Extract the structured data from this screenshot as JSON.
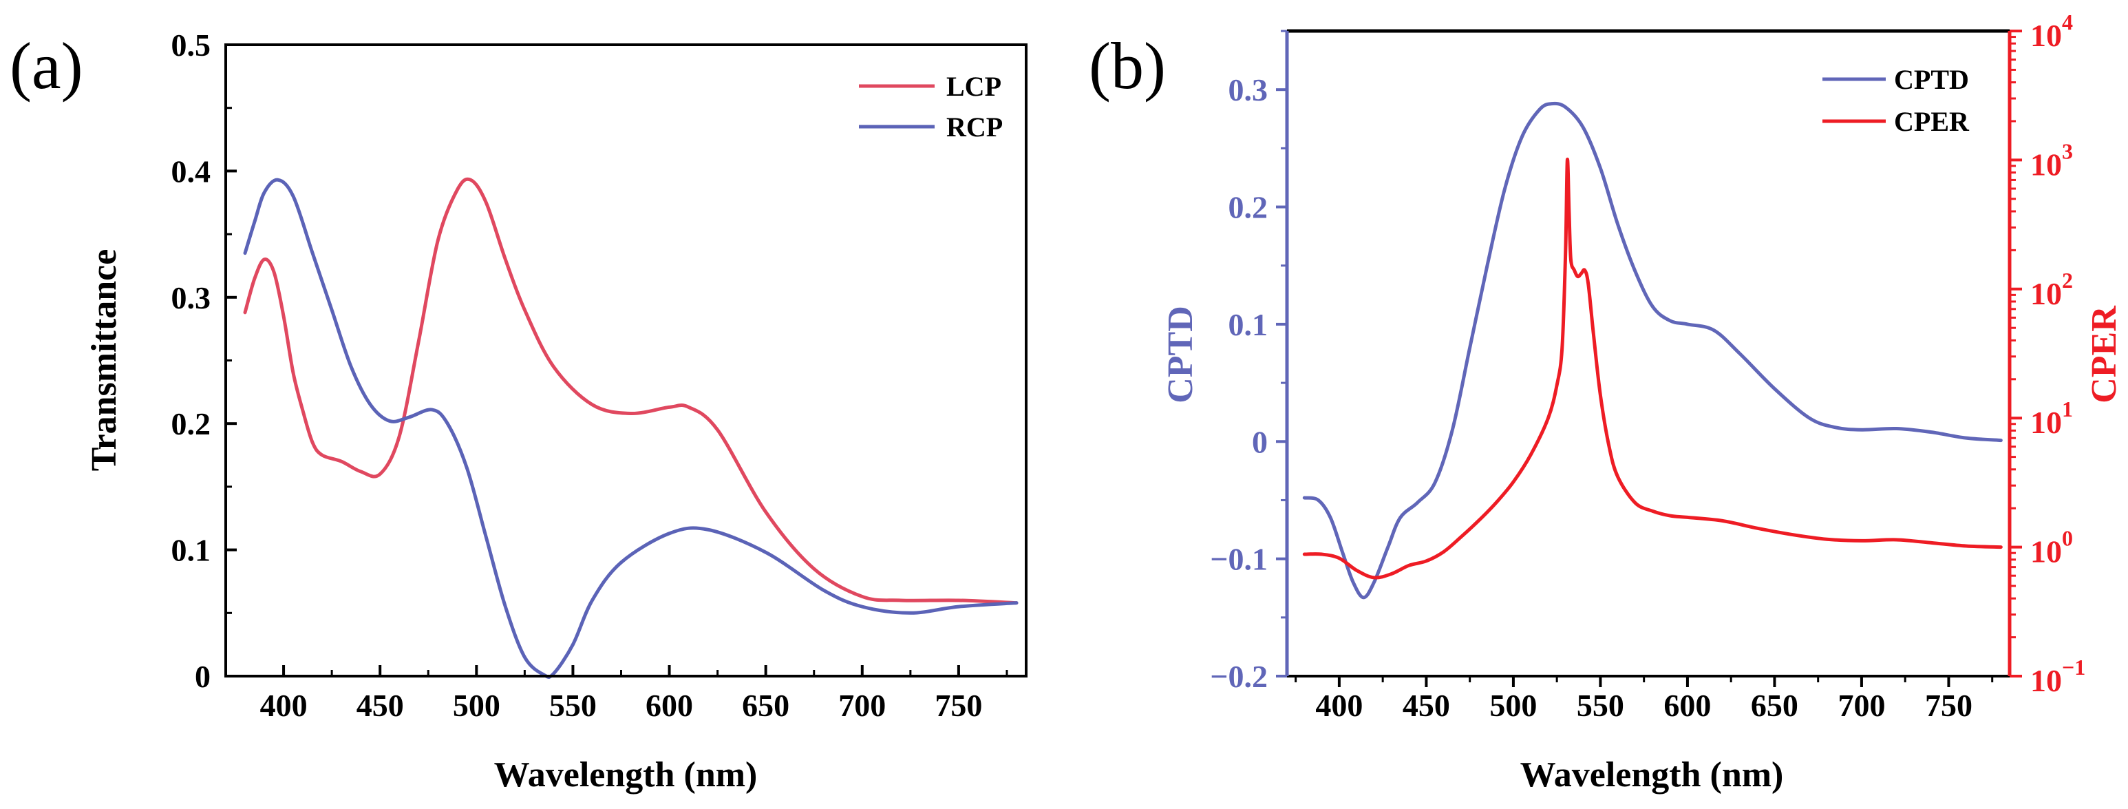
{
  "chart_data": [
    {
      "panel": "(a)",
      "type": "line",
      "title": "",
      "xlabel": "Wavelength (nm)",
      "ylabel": "Transmittance",
      "xlim": [
        370,
        785
      ],
      "ylim": [
        0,
        0.5
      ],
      "xticks": [
        400,
        450,
        500,
        550,
        600,
        650,
        700,
        750
      ],
      "xtick_labels": [
        "400",
        "450",
        "500",
        "550",
        "600",
        "650",
        "700",
        "750"
      ],
      "yticks": [
        0,
        0.1,
        0.2,
        0.3,
        0.4,
        0.5
      ],
      "ytick_labels": [
        "0",
        "0.1",
        "0.2",
        "0.3",
        "0.4",
        "0.5"
      ],
      "legend_position": "top-right",
      "series": [
        {
          "name": "LCP",
          "color": "#e0485f",
          "x": [
            380,
            385,
            390,
            395,
            400,
            405,
            410,
            415,
            420,
            430,
            440,
            450,
            460,
            470,
            480,
            490,
            497,
            505,
            515,
            525,
            540,
            560,
            580,
            600,
            610,
            625,
            650,
            675,
            700,
            720,
            750,
            780
          ],
          "y": [
            0.288,
            0.315,
            0.33,
            0.32,
            0.285,
            0.24,
            0.21,
            0.185,
            0.175,
            0.17,
            0.162,
            0.16,
            0.19,
            0.265,
            0.345,
            0.385,
            0.393,
            0.375,
            0.33,
            0.29,
            0.245,
            0.215,
            0.208,
            0.213,
            0.213,
            0.195,
            0.13,
            0.085,
            0.063,
            0.06,
            0.06,
            0.058
          ]
        },
        {
          "name": "RCP",
          "color": "#5b63b7",
          "x": [
            380,
            385,
            390,
            397,
            405,
            415,
            425,
            435,
            445,
            455,
            465,
            477,
            485,
            495,
            505,
            515,
            525,
            535,
            540,
            550,
            560,
            575,
            600,
            620,
            650,
            680,
            700,
            725,
            750,
            780
          ],
          "y": [
            0.335,
            0.36,
            0.383,
            0.393,
            0.38,
            0.335,
            0.29,
            0.245,
            0.215,
            0.202,
            0.205,
            0.211,
            0.2,
            0.165,
            0.11,
            0.055,
            0.015,
            0.001,
            0.002,
            0.025,
            0.06,
            0.09,
            0.113,
            0.116,
            0.098,
            0.068,
            0.055,
            0.05,
            0.055,
            0.058
          ]
        }
      ]
    },
    {
      "panel": "(b)",
      "type": "line",
      "title": "",
      "xlabel": "Wavelength (nm)",
      "ylabel": "CPTD",
      "y2label": "CPER",
      "xlim": [
        370,
        785
      ],
      "ylim": [
        -0.2,
        0.35
      ],
      "y2lim": [
        0.1,
        10000
      ],
      "y2scale": "log",
      "xticks": [
        400,
        450,
        500,
        550,
        600,
        650,
        700,
        750
      ],
      "xtick_labels": [
        "400",
        "450",
        "500",
        "550",
        "600",
        "650",
        "700",
        "750"
      ],
      "yticks": [
        -0.2,
        -0.1,
        0,
        0.1,
        0.2,
        0.3
      ],
      "ytick_labels": [
        "−0.2",
        "−0.1",
        "0",
        "0.1",
        "0.2",
        "0.3"
      ],
      "y2ticks": [
        {
          "value": 0.1,
          "base": "10",
          "exp": "−1"
        },
        {
          "value": 1,
          "base": "10",
          "exp": "0"
        },
        {
          "value": 10,
          "base": "10",
          "exp": "1"
        },
        {
          "value": 100,
          "base": "10",
          "exp": "2"
        },
        {
          "value": 1000,
          "base": "10",
          "exp": "3"
        },
        {
          "value": 10000,
          "base": "10",
          "exp": "4"
        }
      ],
      "legend_position": "top-right",
      "series": [
        {
          "name": "CPTD",
          "axis": "left",
          "color": "#6066b8",
          "x": [
            380,
            388,
            395,
            402,
            408,
            414,
            420,
            428,
            435,
            445,
            455,
            465,
            475,
            485,
            495,
            505,
            515,
            522,
            530,
            540,
            550,
            560,
            570,
            580,
            590,
            600,
            615,
            630,
            650,
            670,
            685,
            700,
            720,
            740,
            760,
            780
          ],
          "y": [
            -0.048,
            -0.05,
            -0.065,
            -0.095,
            -0.12,
            -0.133,
            -0.12,
            -0.09,
            -0.065,
            -0.052,
            -0.035,
            0.01,
            0.08,
            0.15,
            0.215,
            0.26,
            0.283,
            0.288,
            0.285,
            0.268,
            0.233,
            0.185,
            0.145,
            0.115,
            0.103,
            0.1,
            0.095,
            0.075,
            0.045,
            0.02,
            0.012,
            0.01,
            0.011,
            0.008,
            0.003,
            0.001
          ]
        },
        {
          "name": "CPER",
          "axis": "right",
          "color": "#ee1c24",
          "x": [
            380,
            390,
            400,
            410,
            420,
            430,
            440,
            450,
            460,
            470,
            480,
            490,
            500,
            510,
            520,
            525,
            528,
            530,
            531,
            532,
            533,
            535,
            537,
            539,
            541,
            543,
            546,
            550,
            555,
            560,
            570,
            580,
            590,
            600,
            620,
            640,
            660,
            680,
            700,
            720,
            740,
            760,
            780
          ],
          "y": [
            0.88,
            0.88,
            0.82,
            0.66,
            0.58,
            0.62,
            0.72,
            0.78,
            0.92,
            1.2,
            1.6,
            2.2,
            3.2,
            5.2,
            10,
            18,
            35,
            200,
            1000,
            400,
            170,
            140,
            125,
            132,
            140,
            110,
            45,
            15,
            6.0,
            3.5,
            2.2,
            1.9,
            1.75,
            1.7,
            1.6,
            1.4,
            1.25,
            1.15,
            1.12,
            1.14,
            1.08,
            1.02,
            1.0
          ]
        }
      ]
    }
  ]
}
